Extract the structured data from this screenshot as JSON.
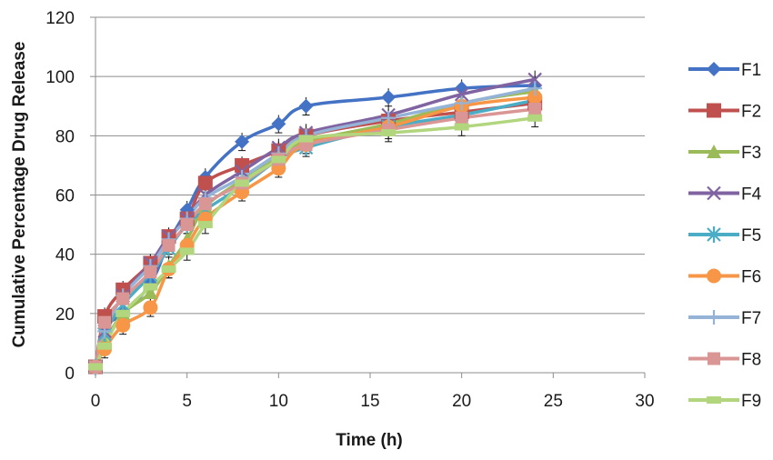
{
  "chart_data": {
    "type": "line",
    "xlabel": "Time (h)",
    "ylabel": "Cumulative Percentage Drug Release",
    "xlim": [
      0,
      30
    ],
    "ylim": [
      0,
      120
    ],
    "x_ticks": [
      0,
      5,
      10,
      15,
      20,
      25,
      30
    ],
    "y_ticks": [
      0,
      20,
      40,
      60,
      80,
      100,
      120
    ],
    "grid": "horizontal",
    "legend_position": "right",
    "series": [
      {
        "name": "F1",
        "color": "#4472C4",
        "marker": "diamond",
        "x": [
          0,
          0.5,
          1.5,
          3,
          4,
          5,
          6,
          8,
          10,
          11.5,
          16,
          20,
          24
        ],
        "y": [
          2,
          15,
          20,
          30,
          44,
          55,
          66,
          78,
          84,
          90,
          93,
          96,
          97
        ]
      },
      {
        "name": "F2",
        "color": "#C0504D",
        "marker": "square",
        "x": [
          0,
          0.5,
          1.5,
          3,
          4,
          5,
          6,
          8,
          10,
          11.5,
          16,
          20,
          24
        ],
        "y": [
          2,
          19,
          28,
          37,
          46,
          52,
          64,
          70,
          75,
          80,
          85,
          88,
          91
        ]
      },
      {
        "name": "F3",
        "color": "#9BBB59",
        "marker": "triangle",
        "x": [
          0,
          0.5,
          1.5,
          3,
          4,
          5,
          6,
          8,
          10,
          11.5,
          16,
          20,
          24
        ],
        "y": [
          2,
          10,
          20,
          27,
          36,
          45,
          56,
          65,
          73,
          78,
          84,
          91,
          95
        ]
      },
      {
        "name": "F4",
        "color": "#8064A2",
        "marker": "x",
        "x": [
          0,
          0.5,
          1.5,
          3,
          4,
          5,
          6,
          8,
          10,
          11.5,
          16,
          20,
          24
        ],
        "y": [
          2,
          14,
          26,
          37,
          46,
          52,
          60,
          68,
          76,
          81,
          87,
          94,
          99
        ]
      },
      {
        "name": "F5",
        "color": "#4BACC6",
        "marker": "star",
        "x": [
          0,
          0.5,
          1.5,
          3,
          4,
          5,
          6,
          8,
          10,
          11.5,
          16,
          20,
          24
        ],
        "y": [
          2,
          13,
          23,
          33,
          42,
          50,
          55,
          63,
          72,
          76,
          83,
          87,
          92
        ]
      },
      {
        "name": "F6",
        "color": "#F79646",
        "marker": "circle",
        "x": [
          0,
          0.5,
          1.5,
          3,
          4,
          5,
          6,
          8,
          10,
          11.5,
          16,
          20,
          24
        ],
        "y": [
          2,
          8,
          16,
          22,
          35,
          43,
          52,
          61,
          69,
          77,
          83,
          90,
          93
        ]
      },
      {
        "name": "F7",
        "color": "#95B3D7",
        "marker": "plus",
        "x": [
          0,
          0.5,
          1.5,
          3,
          4,
          5,
          6,
          8,
          10,
          11.5,
          16,
          20,
          24
        ],
        "y": [
          2,
          14,
          26,
          36,
          45,
          52,
          59,
          66,
          74,
          80,
          86,
          91,
          96
        ]
      },
      {
        "name": "F8",
        "color": "#D99694",
        "marker": "square-small",
        "x": [
          0,
          0.5,
          1.5,
          3,
          4,
          5,
          6,
          8,
          10,
          11.5,
          16,
          20,
          24
        ],
        "y": [
          2,
          17,
          25,
          34,
          43,
          50,
          57,
          64,
          72,
          77,
          82,
          86,
          89
        ]
      },
      {
        "name": "F9",
        "color": "#B2D67E",
        "marker": "bar",
        "x": [
          0,
          0.5,
          1.5,
          3,
          4,
          5,
          6,
          8,
          10,
          11.5,
          16,
          20,
          24
        ],
        "y": [
          2,
          9,
          20,
          29,
          35,
          41,
          50,
          64,
          72,
          79,
          81,
          83,
          86
        ]
      }
    ]
  }
}
